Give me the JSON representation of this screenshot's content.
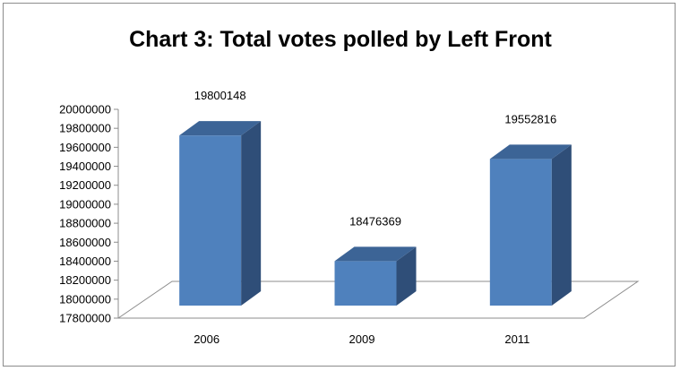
{
  "chart_data": {
    "type": "bar",
    "title": "Chart 3: Total votes polled by Left Front",
    "xlabel": "",
    "ylabel": "",
    "categories": [
      "2006",
      "2009",
      "2011"
    ],
    "values": [
      19800148,
      18476369,
      19552816
    ],
    "data_labels": [
      "19800148",
      "18476369",
      "19552816"
    ],
    "ylim": [
      17800000,
      20000000
    ],
    "yticks": [
      17800000,
      18000000,
      18200000,
      18400000,
      18600000,
      18800000,
      19000000,
      19200000,
      19400000,
      19600000,
      19800000,
      20000000
    ],
    "ytick_labels": [
      "17800000",
      "18000000",
      "18200000",
      "18400000",
      "18600000",
      "18800000",
      "19000000",
      "19200000",
      "19400000",
      "19600000",
      "19800000",
      "20000000"
    ],
    "style": "3d-column",
    "grid": false,
    "legend": "none",
    "colors": {
      "bar_front": "#4f81bd",
      "bar_side": "#2f4e78",
      "bar_top": "#3c6496"
    }
  }
}
